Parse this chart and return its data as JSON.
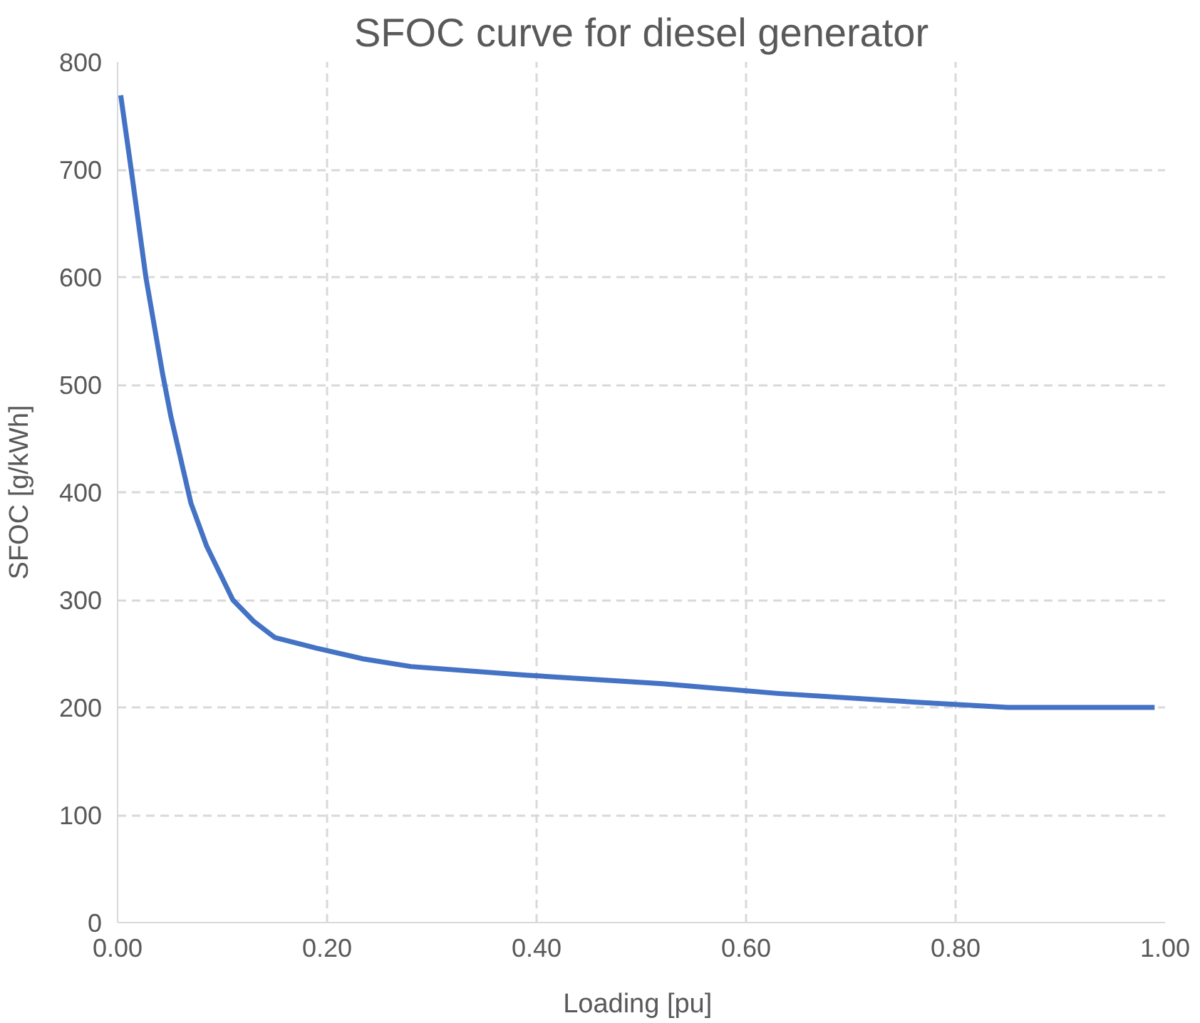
{
  "chart_data": {
    "type": "line",
    "title": "SFOC curve for diesel generator",
    "xlabel": "Loading  [pu]",
    "ylabel": "SFOC [g/kWh]",
    "x": [
      0.003,
      0.013,
      0.027,
      0.043,
      0.051,
      0.07,
      0.085,
      0.1,
      0.11,
      0.13,
      0.15,
      0.19,
      0.235,
      0.28,
      0.39,
      0.52,
      0.63,
      0.76,
      0.85,
      0.99
    ],
    "series": [
      {
        "color": "#4472c4",
        "values": [
          769,
          700,
          600,
          510,
          470,
          390,
          350,
          320,
          300,
          280,
          265,
          255,
          245,
          238,
          230,
          222,
          213,
          205,
          200,
          200
        ]
      }
    ],
    "xlim": [
      0,
      1
    ],
    "ylim": [
      0,
      800
    ],
    "xticks": [
      {
        "value": 0,
        "label": "0.00"
      },
      {
        "value": 0.2,
        "label": "0.20"
      },
      {
        "value": 0.4,
        "label": "0.40"
      },
      {
        "value": 0.6,
        "label": "0.60"
      },
      {
        "value": 0.8,
        "label": "0.80"
      },
      {
        "value": 1,
        "label": "1.00"
      }
    ],
    "yticks": [
      0,
      100,
      200,
      300,
      400,
      500,
      600,
      700,
      800
    ],
    "grid": true,
    "marker": "none",
    "line_style": "solid"
  }
}
